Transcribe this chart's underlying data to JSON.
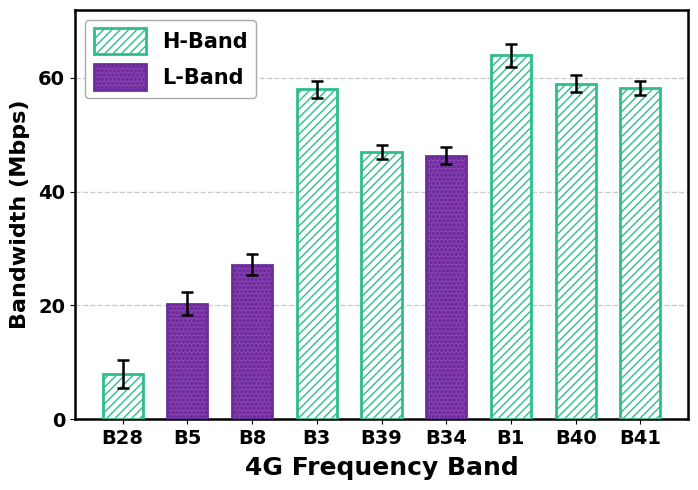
{
  "categories": [
    "B28",
    "B5",
    "B8",
    "B3",
    "B39",
    "B34",
    "B1",
    "B40",
    "B41"
  ],
  "values": [
    8.0,
    20.3,
    27.2,
    58.0,
    47.0,
    46.3,
    64.0,
    59.0,
    58.2
  ],
  "errors": [
    2.5,
    2.0,
    1.8,
    1.5,
    1.2,
    1.5,
    2.0,
    1.5,
    1.2
  ],
  "band_types": [
    "H",
    "L",
    "L",
    "H",
    "H",
    "L",
    "H",
    "H",
    "H"
  ],
  "h_band_facecolor": "white",
  "h_band_edgecolor": "#2ebd8e",
  "h_band_hatch_color": "#2ebd8e",
  "l_band_facecolor": "#8b3fb5",
  "l_band_edgecolor": "#6a2d9a",
  "l_band_hatch_color": "white",
  "h_hatch": "////",
  "l_hatch": "oooo",
  "xlabel": "4G Frequency Band",
  "ylabel": "Bandwidth (Mbps)",
  "ylim": [
    0,
    72
  ],
  "yticks": [
    0,
    20,
    40,
    60
  ],
  "legend_labels": [
    "H-Band",
    "L-Band"
  ],
  "background_color": "#ffffff",
  "grid_color": "#cccccc",
  "xlabel_fontsize": 18,
  "ylabel_fontsize": 16,
  "tick_fontsize": 14,
  "legend_fontsize": 15
}
